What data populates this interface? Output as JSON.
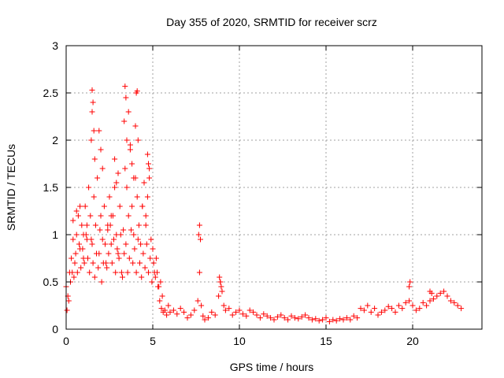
{
  "chart_data": {
    "type": "scatter",
    "title": "Day 355 of 2020, SRMTID for receiver scrz",
    "xlabel": "GPS time / hours",
    "ylabel": "SRMTID / TECUs",
    "xlim": [
      0,
      24
    ],
    "ylim": [
      0,
      3
    ],
    "xticks": [
      0,
      5,
      10,
      15,
      20
    ],
    "xtick_labels": [
      "0",
      "5",
      "10",
      "15",
      "20"
    ],
    "yticks": [
      0,
      0.5,
      1,
      1.5,
      2,
      2.5,
      3
    ],
    "ytick_labels": [
      "0",
      "0.5",
      "1",
      "1.5",
      "2",
      "2.5",
      "3"
    ],
    "grid": true,
    "marker": "+",
    "series": [
      {
        "name": "SRMTID",
        "color": "#ff0000",
        "x": [
          0.0,
          0.1,
          0.2,
          0.3,
          0.4,
          0.5,
          0.6,
          0.7,
          0.8,
          0.9,
          1.0,
          1.1,
          1.2,
          1.3,
          1.4,
          1.5,
          1.6,
          1.7,
          1.8,
          1.9,
          2.0,
          2.1,
          2.2,
          2.3,
          2.4,
          2.5,
          2.6,
          2.7,
          2.8,
          2.9,
          3.0,
          3.1,
          3.2,
          3.3,
          3.4,
          3.5,
          3.6,
          3.7,
          3.8,
          3.9,
          4.0,
          4.1,
          4.2,
          4.3,
          4.4,
          4.5,
          4.6,
          4.7,
          4.8,
          4.9,
          5.0,
          5.1,
          5.2,
          5.3,
          5.4,
          5.5,
          5.6,
          5.7,
          5.8,
          5.9,
          6.0,
          6.2,
          6.4,
          6.6,
          6.8,
          7.0,
          7.2,
          7.4,
          7.6,
          7.7,
          7.8,
          7.9,
          8.0,
          8.2,
          8.4,
          8.6,
          8.8,
          8.9,
          9.0,
          9.1,
          9.2,
          9.4,
          9.6,
          9.8,
          10.0,
          10.2,
          10.4,
          10.6,
          10.8,
          11.0,
          11.2,
          11.4,
          11.6,
          11.8,
          12.0,
          12.2,
          12.4,
          12.6,
          12.8,
          13.0,
          13.2,
          13.4,
          13.6,
          13.8,
          14.0,
          14.2,
          14.4,
          14.6,
          14.8,
          15.0,
          15.2,
          15.4,
          15.6,
          15.8,
          16.0,
          16.2,
          16.4,
          16.6,
          16.8,
          17.0,
          17.2,
          17.4,
          17.6,
          17.8,
          18.0,
          18.2,
          18.4,
          18.6,
          18.8,
          19.0,
          19.2,
          19.4,
          19.6,
          19.8,
          20.0,
          20.2,
          20.4,
          20.6,
          20.8,
          21.0,
          21.2,
          21.4,
          21.6,
          21.8,
          22.0,
          22.2,
          22.4,
          22.6,
          22.8,
          0.05,
          0.15,
          0.25,
          0.35,
          0.45,
          0.55,
          0.65,
          0.75,
          0.85,
          0.95,
          1.05,
          1.15,
          1.25,
          1.35,
          1.45,
          1.55,
          1.65,
          1.75,
          1.85,
          1.95,
          2.05,
          2.15,
          2.25,
          2.35,
          2.45,
          2.55,
          2.65,
          2.75,
          2.85,
          2.95,
          3.05,
          3.15,
          3.25,
          3.35,
          3.45,
          3.55,
          3.65,
          3.75,
          3.85,
          3.95,
          4.05,
          4.15,
          4.25,
          4.35,
          4.45,
          4.55,
          4.65,
          4.75,
          4.85,
          4.95,
          5.05,
          5.15,
          5.25,
          5.35,
          5.45,
          5.55,
          1.45,
          1.5,
          1.5,
          1.55,
          1.6,
          1.65,
          3.35,
          3.4,
          3.45,
          3.5,
          3.6,
          4.0,
          4.05,
          4.1,
          4.15,
          4.7,
          4.75,
          4.8,
          1.9,
          2.0,
          2.1,
          2.8,
          2.9,
          3.0,
          3.7,
          3.8,
          3.9,
          0.4,
          0.6,
          0.8,
          1.0,
          1.2,
          2.4,
          2.6,
          4.4,
          4.6,
          7.65,
          7.7,
          7.75,
          8.85,
          8.9,
          8.95,
          19.8,
          19.85,
          21.0,
          21.1
        ],
        "y": [
          0.45,
          0.35,
          0.6,
          0.75,
          0.95,
          0.7,
          1.0,
          1.2,
          0.85,
          1.1,
          0.75,
          1.3,
          0.95,
          1.5,
          1.2,
          0.9,
          1.4,
          1.1,
          1.6,
          0.8,
          1.2,
          0.95,
          1.3,
          0.7,
          1.1,
          1.4,
          0.9,
          1.2,
          1.5,
          1.0,
          0.8,
          1.3,
          0.6,
          1.05,
          1.7,
          1.5,
          1.2,
          1.9,
          1.3,
          1.0,
          1.6,
          1.4,
          1.1,
          0.9,
          1.3,
          1.55,
          1.2,
          1.4,
          1.7,
          0.95,
          0.85,
          0.6,
          0.75,
          0.45,
          0.3,
          0.22,
          0.18,
          0.2,
          0.15,
          0.25,
          0.18,
          0.2,
          0.16,
          0.22,
          0.18,
          0.12,
          0.15,
          0.2,
          0.3,
          0.6,
          0.25,
          0.14,
          0.1,
          0.12,
          0.18,
          0.15,
          0.35,
          0.5,
          0.4,
          0.25,
          0.2,
          0.22,
          0.15,
          0.18,
          0.2,
          0.16,
          0.14,
          0.2,
          0.18,
          0.15,
          0.12,
          0.16,
          0.14,
          0.12,
          0.1,
          0.13,
          0.15,
          0.12,
          0.1,
          0.14,
          0.12,
          0.11,
          0.13,
          0.15,
          0.12,
          0.1,
          0.11,
          0.09,
          0.1,
          0.12,
          0.08,
          0.1,
          0.09,
          0.11,
          0.1,
          0.12,
          0.1,
          0.14,
          0.12,
          0.22,
          0.2,
          0.25,
          0.18,
          0.22,
          0.15,
          0.18,
          0.2,
          0.24,
          0.22,
          0.18,
          0.25,
          0.22,
          0.28,
          0.3,
          0.25,
          0.2,
          0.22,
          0.28,
          0.25,
          0.3,
          0.32,
          0.35,
          0.38,
          0.4,
          0.35,
          0.3,
          0.28,
          0.25,
          0.22,
          0.2,
          0.3,
          0.5,
          0.6,
          0.55,
          0.8,
          0.6,
          0.9,
          0.65,
          0.85,
          0.7,
          1.0,
          0.75,
          0.6,
          0.95,
          0.7,
          0.55,
          0.8,
          0.65,
          1.05,
          0.5,
          0.7,
          0.9,
          0.65,
          0.8,
          1.1,
          0.7,
          0.95,
          0.6,
          0.85,
          0.75,
          1.0,
          0.55,
          0.8,
          0.9,
          0.6,
          0.75,
          1.05,
          0.7,
          0.85,
          0.6,
          0.95,
          0.7,
          0.55,
          0.8,
          0.65,
          0.9,
          0.6,
          0.75,
          0.5,
          0.7,
          0.55,
          0.6,
          0.45,
          0.5,
          0.35,
          2.0,
          2.3,
          2.53,
          2.4,
          2.1,
          1.8,
          2.2,
          2.57,
          2.45,
          2.0,
          2.3,
          2.15,
          2.5,
          2.52,
          2.0,
          1.85,
          1.75,
          1.6,
          2.1,
          1.9,
          1.7,
          1.8,
          1.55,
          1.65,
          1.95,
          1.75,
          1.6,
          1.15,
          1.25,
          1.3,
          1.0,
          1.1,
          1.05,
          1.2,
          1.3,
          1.1,
          1.0,
          1.1,
          0.95,
          0.55,
          0.5,
          0.45,
          0.45,
          0.5,
          0.4,
          0.38
        ]
      }
    ]
  }
}
